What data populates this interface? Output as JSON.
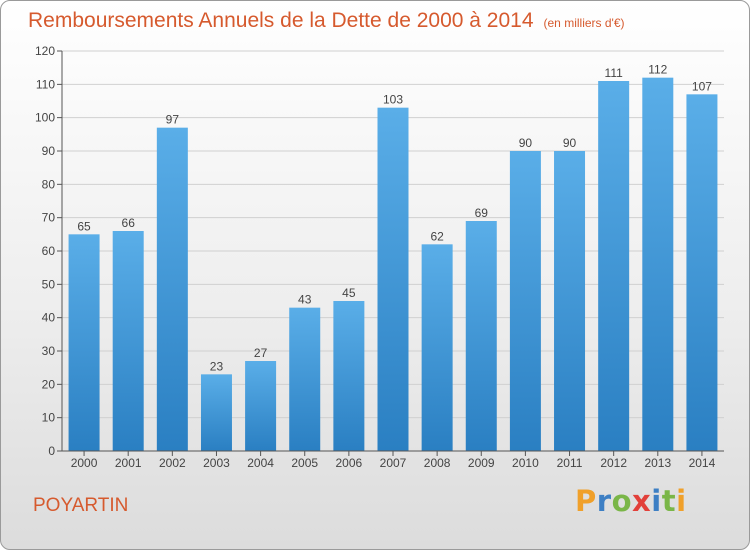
{
  "header": {
    "title": "Remboursements Annuels de la Dette de 2000 à 2014",
    "unit": "(en milliers d'€)"
  },
  "footer": {
    "commune": "POYARTIN"
  },
  "logo": {
    "letters": [
      "P",
      "r",
      "o",
      "x",
      "i",
      "t",
      "i"
    ],
    "colors": [
      "#f0a02a",
      "#3d7fc4",
      "#7ab648",
      "#e2403a",
      "#3d7fc4",
      "#7ab648",
      "#f0a02a"
    ]
  },
  "colors": {
    "title": "#d65a2e",
    "bar_light": "#5aaee8",
    "bar_dark": "#2a7fc2",
    "axis": "#555555",
    "grid": "#d0d0d0"
  },
  "chart_data": {
    "type": "bar",
    "categories": [
      "2000",
      "2001",
      "2002",
      "2003",
      "2004",
      "2005",
      "2006",
      "2007",
      "2008",
      "2009",
      "2010",
      "2011",
      "2012",
      "2013",
      "2014"
    ],
    "values": [
      65,
      66,
      97,
      23,
      27,
      43,
      45,
      103,
      62,
      69,
      90,
      90,
      111,
      112,
      107
    ],
    "ylim": [
      0,
      120
    ],
    "yticks": [
      0,
      10,
      20,
      30,
      40,
      50,
      60,
      70,
      80,
      90,
      100,
      110,
      120
    ],
    "grid": true,
    "data_labels": true
  }
}
